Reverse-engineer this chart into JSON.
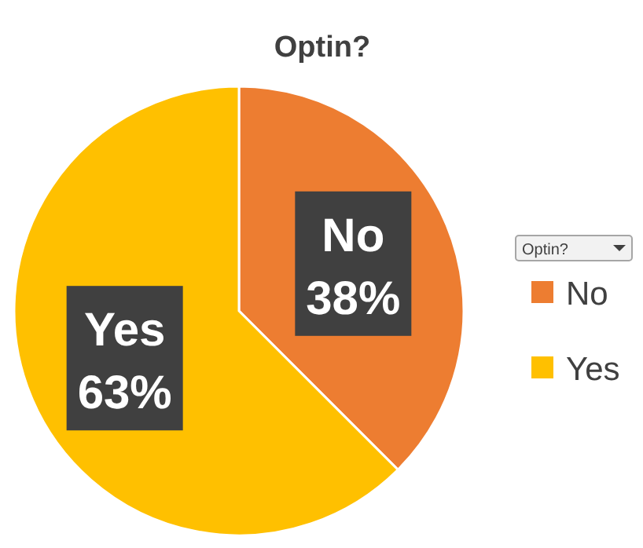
{
  "chart_data": {
    "type": "pie",
    "title": "Optin?",
    "legend_title": "Optin?",
    "categories": [
      "No",
      "Yes"
    ],
    "values": [
      37.5,
      62.5
    ],
    "colors": [
      "#ed7d31",
      "#ffc000"
    ],
    "value_labels": [
      "38%",
      "63%"
    ],
    "legend": "right"
  }
}
